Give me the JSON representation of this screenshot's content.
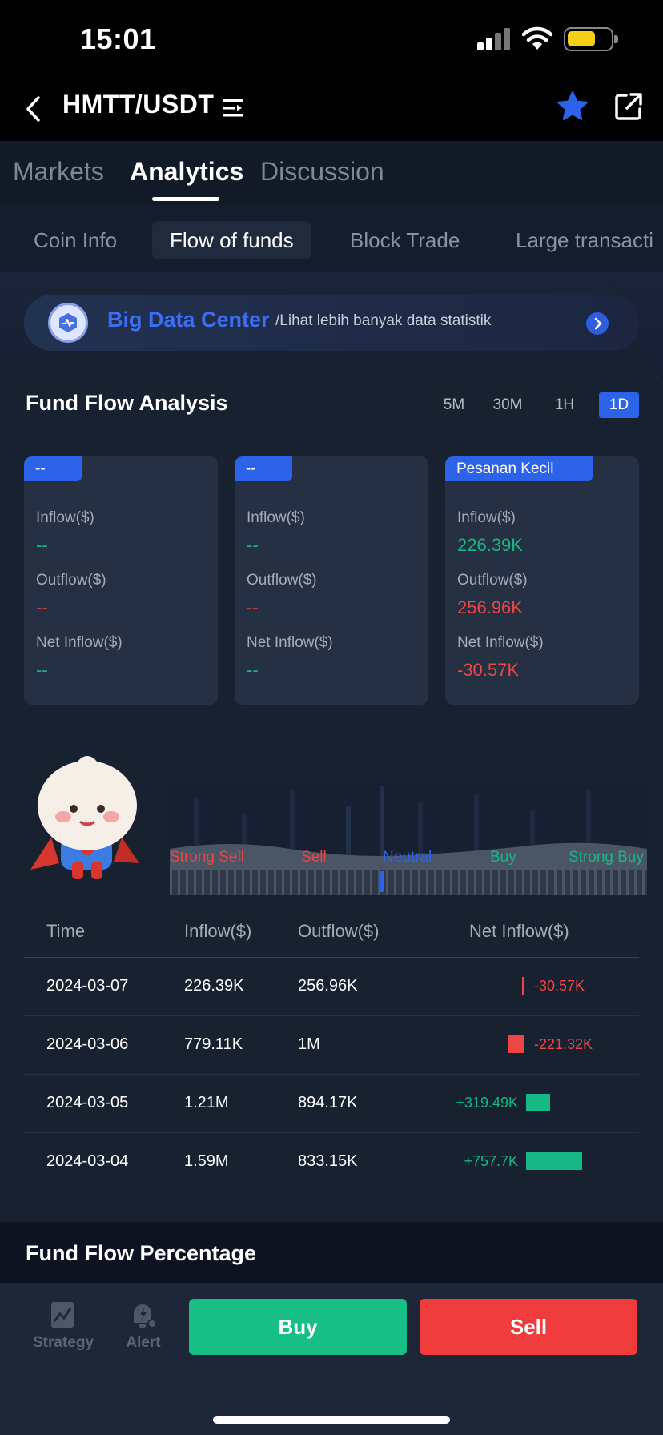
{
  "status_bar": {
    "time": "15:01"
  },
  "header": {
    "pair": "HMTT/USDT"
  },
  "main_tabs": [
    {
      "label": "Markets"
    },
    {
      "label": "Analytics",
      "active": true
    },
    {
      "label": "Discussion"
    }
  ],
  "sub_tabs": [
    {
      "label": "Coin Info"
    },
    {
      "label": "Flow of funds",
      "active": true
    },
    {
      "label": "Block Trade"
    },
    {
      "label": "Large transacti"
    }
  ],
  "banner": {
    "title": "Big Data Center",
    "subtitle": "/Lihat lebih banyak data statistik"
  },
  "fund_flow": {
    "title": "Fund Flow Analysis",
    "periods": [
      "5M",
      "30M",
      "1H",
      "1D"
    ],
    "active_period": "1D",
    "cards": [
      {
        "tag": "--",
        "inflow_label": "Inflow($)",
        "inflow": "--",
        "outflow_label": "Outflow($)",
        "outflow": "--",
        "net_label": "Net Inflow($)",
        "net": "--"
      },
      {
        "tag": "--",
        "inflow_label": "Inflow($)",
        "inflow": "--",
        "outflow_label": "Outflow($)",
        "outflow": "--",
        "net_label": "Net Inflow($)",
        "net": "--"
      },
      {
        "tag": "Pesanan Kecil",
        "inflow_label": "Inflow($)",
        "inflow": "226.39K",
        "outflow_label": "Outflow($)",
        "outflow": "256.96K",
        "net_label": "Net Inflow($)",
        "net": "-30.57K"
      }
    ]
  },
  "sentiment": {
    "levels": [
      "Strong Sell",
      "Sell",
      "Neutral",
      "Buy",
      "Strong Buy"
    ],
    "current": "Neutral",
    "colors": {
      "sell": "#ec4646",
      "neutral": "#2c63e8",
      "buy": "#17b884"
    }
  },
  "table": {
    "headers": {
      "time": "Time",
      "inflow": "Inflow($)",
      "outflow": "Outflow($)",
      "net": "Net Inflow($)"
    },
    "rows": [
      {
        "time": "2024-03-07",
        "inflow": "226.39K",
        "outflow": "256.96K",
        "net": "-30.57K",
        "net_value": -30.57
      },
      {
        "time": "2024-03-06",
        "inflow": "779.11K",
        "outflow": "1M",
        "net": "-221.32K",
        "net_value": -221.32
      },
      {
        "time": "2024-03-05",
        "inflow": "1.21M",
        "outflow": "894.17K",
        "net": "+319.49K",
        "net_value": 319.49
      },
      {
        "time": "2024-03-04",
        "inflow": "1.59M",
        "outflow": "833.15K",
        "net": "+757.7K",
        "net_value": 757.7
      }
    ]
  },
  "percentage": {
    "title": "Fund Flow Percentage"
  },
  "bottom_bar": {
    "strategy": "Strategy",
    "alert": "Alert",
    "buy": "Buy",
    "sell": "Sell",
    "buy_color": "#17be85",
    "sell_color": "#f03c3c"
  }
}
